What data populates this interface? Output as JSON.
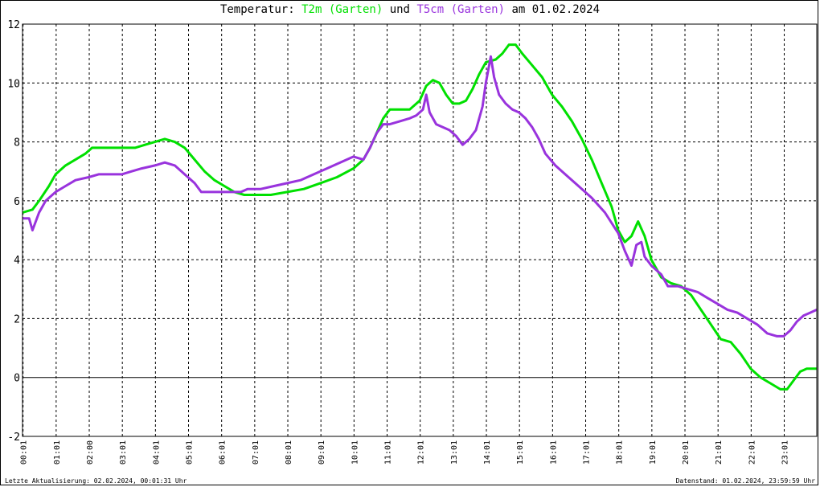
{
  "chart_data": {
    "type": "line",
    "title": {
      "prefix": "Temperatur:",
      "series1": "T2m (Garten)",
      "joiner": "und",
      "series2": "T5cm (Garten)",
      "suffix": "am 01.02.2024"
    },
    "ylim": [
      -2,
      12
    ],
    "y_ticks": [
      "12",
      "10",
      "8",
      "6",
      "4",
      "2",
      "0",
      "-2"
    ],
    "x_tick_labels": [
      "00:01",
      "01:01",
      "02:00",
      "03:01",
      "04:01",
      "05:01",
      "06:01",
      "07:01",
      "08:01",
      "09:01",
      "10:01",
      "11:01",
      "12:01",
      "13:01",
      "14:01",
      "15:01",
      "16:01",
      "17:01",
      "18:01",
      "19:01",
      "20:01",
      "21:01",
      "22:01",
      "23:01"
    ],
    "xlim_hours": [
      0,
      24
    ],
    "grid": true,
    "series": [
      {
        "name": "T2m (Garten)",
        "color": "#00e000",
        "points": [
          [
            0,
            5.6
          ],
          [
            0.3,
            5.7
          ],
          [
            0.5,
            6.0
          ],
          [
            0.8,
            6.5
          ],
          [
            1.0,
            6.9
          ],
          [
            1.3,
            7.2
          ],
          [
            1.6,
            7.4
          ],
          [
            1.9,
            7.6
          ],
          [
            2.1,
            7.8
          ],
          [
            2.5,
            7.8
          ],
          [
            3.0,
            7.8
          ],
          [
            3.4,
            7.8
          ],
          [
            3.7,
            7.9
          ],
          [
            4.0,
            8.0
          ],
          [
            4.3,
            8.1
          ],
          [
            4.6,
            8.0
          ],
          [
            4.9,
            7.8
          ],
          [
            5.2,
            7.4
          ],
          [
            5.5,
            7.0
          ],
          [
            5.8,
            6.7
          ],
          [
            6.1,
            6.5
          ],
          [
            6.4,
            6.3
          ],
          [
            6.7,
            6.2
          ],
          [
            7.0,
            6.2
          ],
          [
            7.5,
            6.2
          ],
          [
            8.0,
            6.3
          ],
          [
            8.5,
            6.4
          ],
          [
            9.0,
            6.6
          ],
          [
            9.5,
            6.8
          ],
          [
            10.0,
            7.1
          ],
          [
            10.3,
            7.4
          ],
          [
            10.5,
            7.8
          ],
          [
            10.7,
            8.3
          ],
          [
            10.9,
            8.8
          ],
          [
            11.1,
            9.1
          ],
          [
            11.4,
            9.1
          ],
          [
            11.7,
            9.1
          ],
          [
            12.0,
            9.4
          ],
          [
            12.2,
            9.9
          ],
          [
            12.4,
            10.1
          ],
          [
            12.6,
            10.0
          ],
          [
            12.8,
            9.6
          ],
          [
            13.0,
            9.3
          ],
          [
            13.2,
            9.3
          ],
          [
            13.4,
            9.4
          ],
          [
            13.6,
            9.8
          ],
          [
            13.8,
            10.3
          ],
          [
            14.0,
            10.7
          ],
          [
            14.3,
            10.8
          ],
          [
            14.5,
            11.0
          ],
          [
            14.7,
            11.3
          ],
          [
            14.9,
            11.3
          ],
          [
            15.1,
            11.0
          ],
          [
            15.4,
            10.6
          ],
          [
            15.7,
            10.2
          ],
          [
            16.0,
            9.6
          ],
          [
            16.3,
            9.2
          ],
          [
            16.6,
            8.7
          ],
          [
            16.9,
            8.1
          ],
          [
            17.2,
            7.4
          ],
          [
            17.5,
            6.6
          ],
          [
            17.8,
            5.8
          ],
          [
            18.0,
            5.0
          ],
          [
            18.2,
            4.6
          ],
          [
            18.4,
            4.8
          ],
          [
            18.6,
            5.3
          ],
          [
            18.8,
            4.8
          ],
          [
            19.0,
            4.0
          ],
          [
            19.3,
            3.4
          ],
          [
            19.6,
            3.2
          ],
          [
            19.9,
            3.1
          ],
          [
            20.2,
            2.8
          ],
          [
            20.5,
            2.3
          ],
          [
            20.8,
            1.8
          ],
          [
            21.1,
            1.3
          ],
          [
            21.4,
            1.2
          ],
          [
            21.7,
            0.8
          ],
          [
            22.0,
            0.3
          ],
          [
            22.3,
            0.0
          ],
          [
            22.6,
            -0.2
          ],
          [
            22.9,
            -0.4
          ],
          [
            23.1,
            -0.4
          ],
          [
            23.3,
            -0.1
          ],
          [
            23.5,
            0.2
          ],
          [
            23.7,
            0.3
          ],
          [
            24.0,
            0.3
          ]
        ]
      },
      {
        "name": "T5cm (Garten)",
        "color": "#9933dd",
        "points": [
          [
            0,
            5.4
          ],
          [
            0.2,
            5.4
          ],
          [
            0.3,
            5.0
          ],
          [
            0.5,
            5.6
          ],
          [
            0.7,
            6.0
          ],
          [
            1.0,
            6.3
          ],
          [
            1.3,
            6.5
          ],
          [
            1.6,
            6.7
          ],
          [
            2.0,
            6.8
          ],
          [
            2.3,
            6.9
          ],
          [
            2.6,
            6.9
          ],
          [
            3.0,
            6.9
          ],
          [
            3.3,
            7.0
          ],
          [
            3.6,
            7.1
          ],
          [
            4.0,
            7.2
          ],
          [
            4.3,
            7.3
          ],
          [
            4.6,
            7.2
          ],
          [
            4.9,
            6.9
          ],
          [
            5.2,
            6.6
          ],
          [
            5.4,
            6.3
          ],
          [
            5.8,
            6.3
          ],
          [
            6.3,
            6.3
          ],
          [
            6.6,
            6.3
          ],
          [
            6.8,
            6.4
          ],
          [
            7.2,
            6.4
          ],
          [
            7.6,
            6.5
          ],
          [
            8.0,
            6.6
          ],
          [
            8.4,
            6.7
          ],
          [
            8.8,
            6.9
          ],
          [
            9.2,
            7.1
          ],
          [
            9.6,
            7.3
          ],
          [
            10.0,
            7.5
          ],
          [
            10.3,
            7.4
          ],
          [
            10.5,
            7.8
          ],
          [
            10.7,
            8.3
          ],
          [
            10.9,
            8.6
          ],
          [
            11.1,
            8.6
          ],
          [
            11.4,
            8.7
          ],
          [
            11.7,
            8.8
          ],
          [
            11.9,
            8.9
          ],
          [
            12.1,
            9.1
          ],
          [
            12.2,
            9.6
          ],
          [
            12.3,
            9.0
          ],
          [
            12.5,
            8.6
          ],
          [
            12.7,
            8.5
          ],
          [
            12.9,
            8.4
          ],
          [
            13.1,
            8.2
          ],
          [
            13.3,
            7.9
          ],
          [
            13.5,
            8.1
          ],
          [
            13.7,
            8.4
          ],
          [
            13.9,
            9.2
          ],
          [
            14.0,
            10.0
          ],
          [
            14.15,
            10.9
          ],
          [
            14.25,
            10.2
          ],
          [
            14.4,
            9.6
          ],
          [
            14.6,
            9.3
          ],
          [
            14.8,
            9.1
          ],
          [
            15.0,
            9.0
          ],
          [
            15.2,
            8.8
          ],
          [
            15.4,
            8.5
          ],
          [
            15.6,
            8.1
          ],
          [
            15.8,
            7.6
          ],
          [
            16.1,
            7.2
          ],
          [
            16.4,
            6.9
          ],
          [
            16.8,
            6.5
          ],
          [
            17.2,
            6.1
          ],
          [
            17.6,
            5.6
          ],
          [
            18.0,
            4.9
          ],
          [
            18.2,
            4.3
          ],
          [
            18.4,
            3.8
          ],
          [
            18.55,
            4.5
          ],
          [
            18.7,
            4.6
          ],
          [
            18.8,
            4.1
          ],
          [
            19.0,
            3.8
          ],
          [
            19.3,
            3.5
          ],
          [
            19.5,
            3.1
          ],
          [
            19.8,
            3.1
          ],
          [
            20.1,
            3.0
          ],
          [
            20.4,
            2.9
          ],
          [
            20.7,
            2.7
          ],
          [
            21.0,
            2.5
          ],
          [
            21.3,
            2.3
          ],
          [
            21.6,
            2.2
          ],
          [
            21.9,
            2.0
          ],
          [
            22.2,
            1.8
          ],
          [
            22.5,
            1.5
          ],
          [
            22.8,
            1.4
          ],
          [
            23.0,
            1.4
          ],
          [
            23.2,
            1.6
          ],
          [
            23.4,
            1.9
          ],
          [
            23.6,
            2.1
          ],
          [
            23.8,
            2.2
          ],
          [
            24.0,
            2.3
          ]
        ]
      }
    ]
  },
  "footer": {
    "left": "Letzte Aktualisierung: 02.02.2024, 00:01:31 Uhr",
    "right": "Datenstand: 01.02.2024, 23:59:59 Uhr"
  }
}
